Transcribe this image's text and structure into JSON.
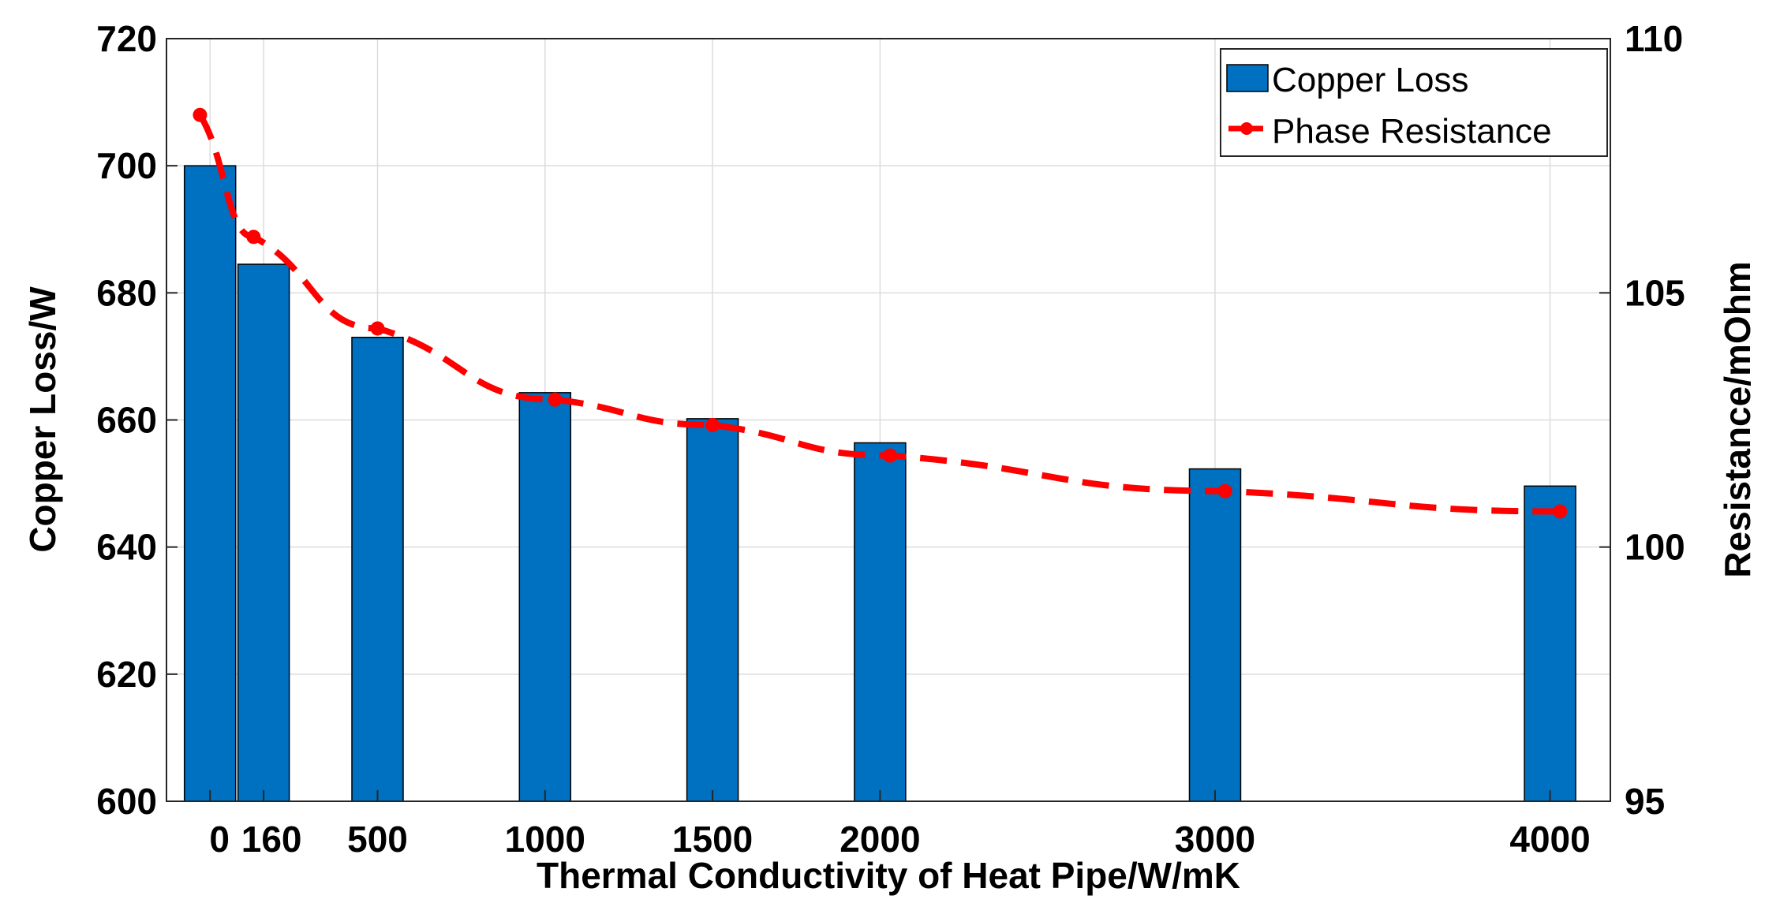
{
  "chart_data": {
    "type": "bar",
    "title": "",
    "xlabel": "Thermal Conductivity of Heat Pipe/W/mK",
    "ylabel": "Copper Loss/W",
    "y2label": "Resistance/mOhm",
    "x": [
      0,
      160,
      500,
      1000,
      1500,
      2000,
      3000,
      4000
    ],
    "xticklabels": [
      "0",
      "160",
      "500",
      "1000",
      "1500",
      "2000",
      "3000",
      "4000"
    ],
    "xlim": [
      -130,
      4180
    ],
    "ylim": [
      600,
      720
    ],
    "y2lim": [
      95,
      110
    ],
    "yticks": [
      600,
      620,
      640,
      660,
      680,
      700,
      720
    ],
    "y2ticks": [
      95,
      100,
      105,
      110
    ],
    "grid": true,
    "legend_position": "top-right",
    "series": [
      {
        "name": "Copper Loss",
        "type": "bar",
        "axis": "left",
        "color": "#0070c0",
        "values": [
          700,
          684.5,
          673,
          664.3,
          660.2,
          656.4,
          652.3,
          649.6
        ]
      },
      {
        "name": "Phase Resistance",
        "type": "line",
        "style": "dashed",
        "marker": "circle",
        "axis": "right",
        "color": "#ff0000",
        "x": [
          -30,
          130,
          500,
          1030,
          1500,
          2030,
          3030,
          4030
        ],
        "values": [
          108.5,
          106.1,
          104.3,
          102.9,
          102.4,
          101.8,
          101.1,
          100.7
        ]
      }
    ]
  }
}
